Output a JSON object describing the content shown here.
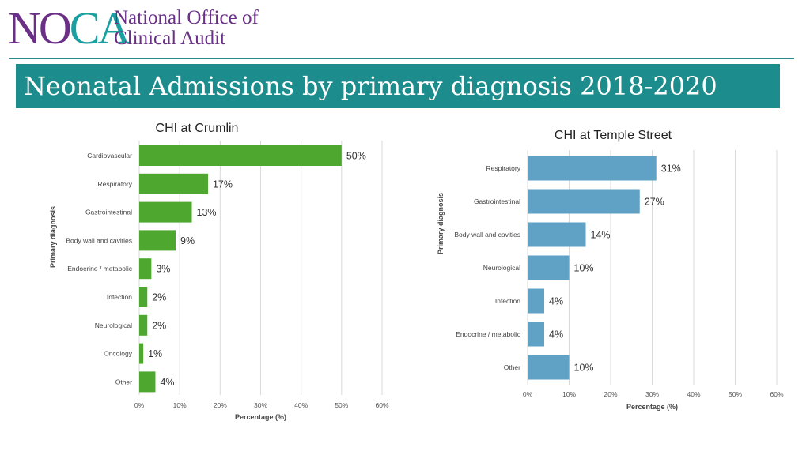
{
  "header": {
    "logo_mark": "NOCA",
    "logo_line1": "National Office of",
    "logo_line2": "Clinical Audit",
    "title": "Neonatal Admissions by primary diagnosis 2018-2020"
  },
  "colors": {
    "brand_purple": "#6a2f86",
    "brand_teal": "#1d8c8c",
    "crumlin_bar": "#4ea72e",
    "temple_bar": "#5fa2c5"
  },
  "chart_data": [
    {
      "type": "bar",
      "orientation": "horizontal",
      "title": "CHI at Crumlin",
      "categories": [
        "Cardiovascular",
        "Respiratory",
        "Gastrointestinal",
        "Body wall and cavities",
        "Endocrine / metabolic",
        "Infection",
        "Neurological",
        "Oncology",
        "Other"
      ],
      "values": [
        50,
        17,
        13,
        9,
        3,
        2,
        2,
        1,
        4
      ],
      "data_labels": [
        "50%",
        "17%",
        "13%",
        "9%",
        "3%",
        "2%",
        "2%",
        "1%",
        "4%"
      ],
      "xlabel": "Percentage (%)",
      "ylabel": "Primary diagnosis",
      "xlim": [
        0,
        60
      ],
      "xticks": [
        "0%",
        "10%",
        "20%",
        "30%",
        "40%",
        "50%",
        "60%"
      ],
      "grid": true,
      "color": "#4ea72e"
    },
    {
      "type": "bar",
      "orientation": "horizontal",
      "title": "CHI at Temple Street",
      "categories": [
        "Respiratory",
        "Gastrointestinal",
        "Body wall and cavities",
        "Neurological",
        "Infection",
        "Endocrine / metabolic",
        "Other"
      ],
      "values": [
        31,
        27,
        14,
        10,
        4,
        4,
        10
      ],
      "data_labels": [
        "31%",
        "27%",
        "14%",
        "10%",
        "4%",
        "4%",
        "10%"
      ],
      "xlabel": "Percentage (%)",
      "ylabel": "Primary diagnosis",
      "xlim": [
        0,
        60
      ],
      "xticks": [
        "0%",
        "10%",
        "20%",
        "30%",
        "40%",
        "50%",
        "60%"
      ],
      "grid": true,
      "color": "#5fa2c5"
    }
  ]
}
